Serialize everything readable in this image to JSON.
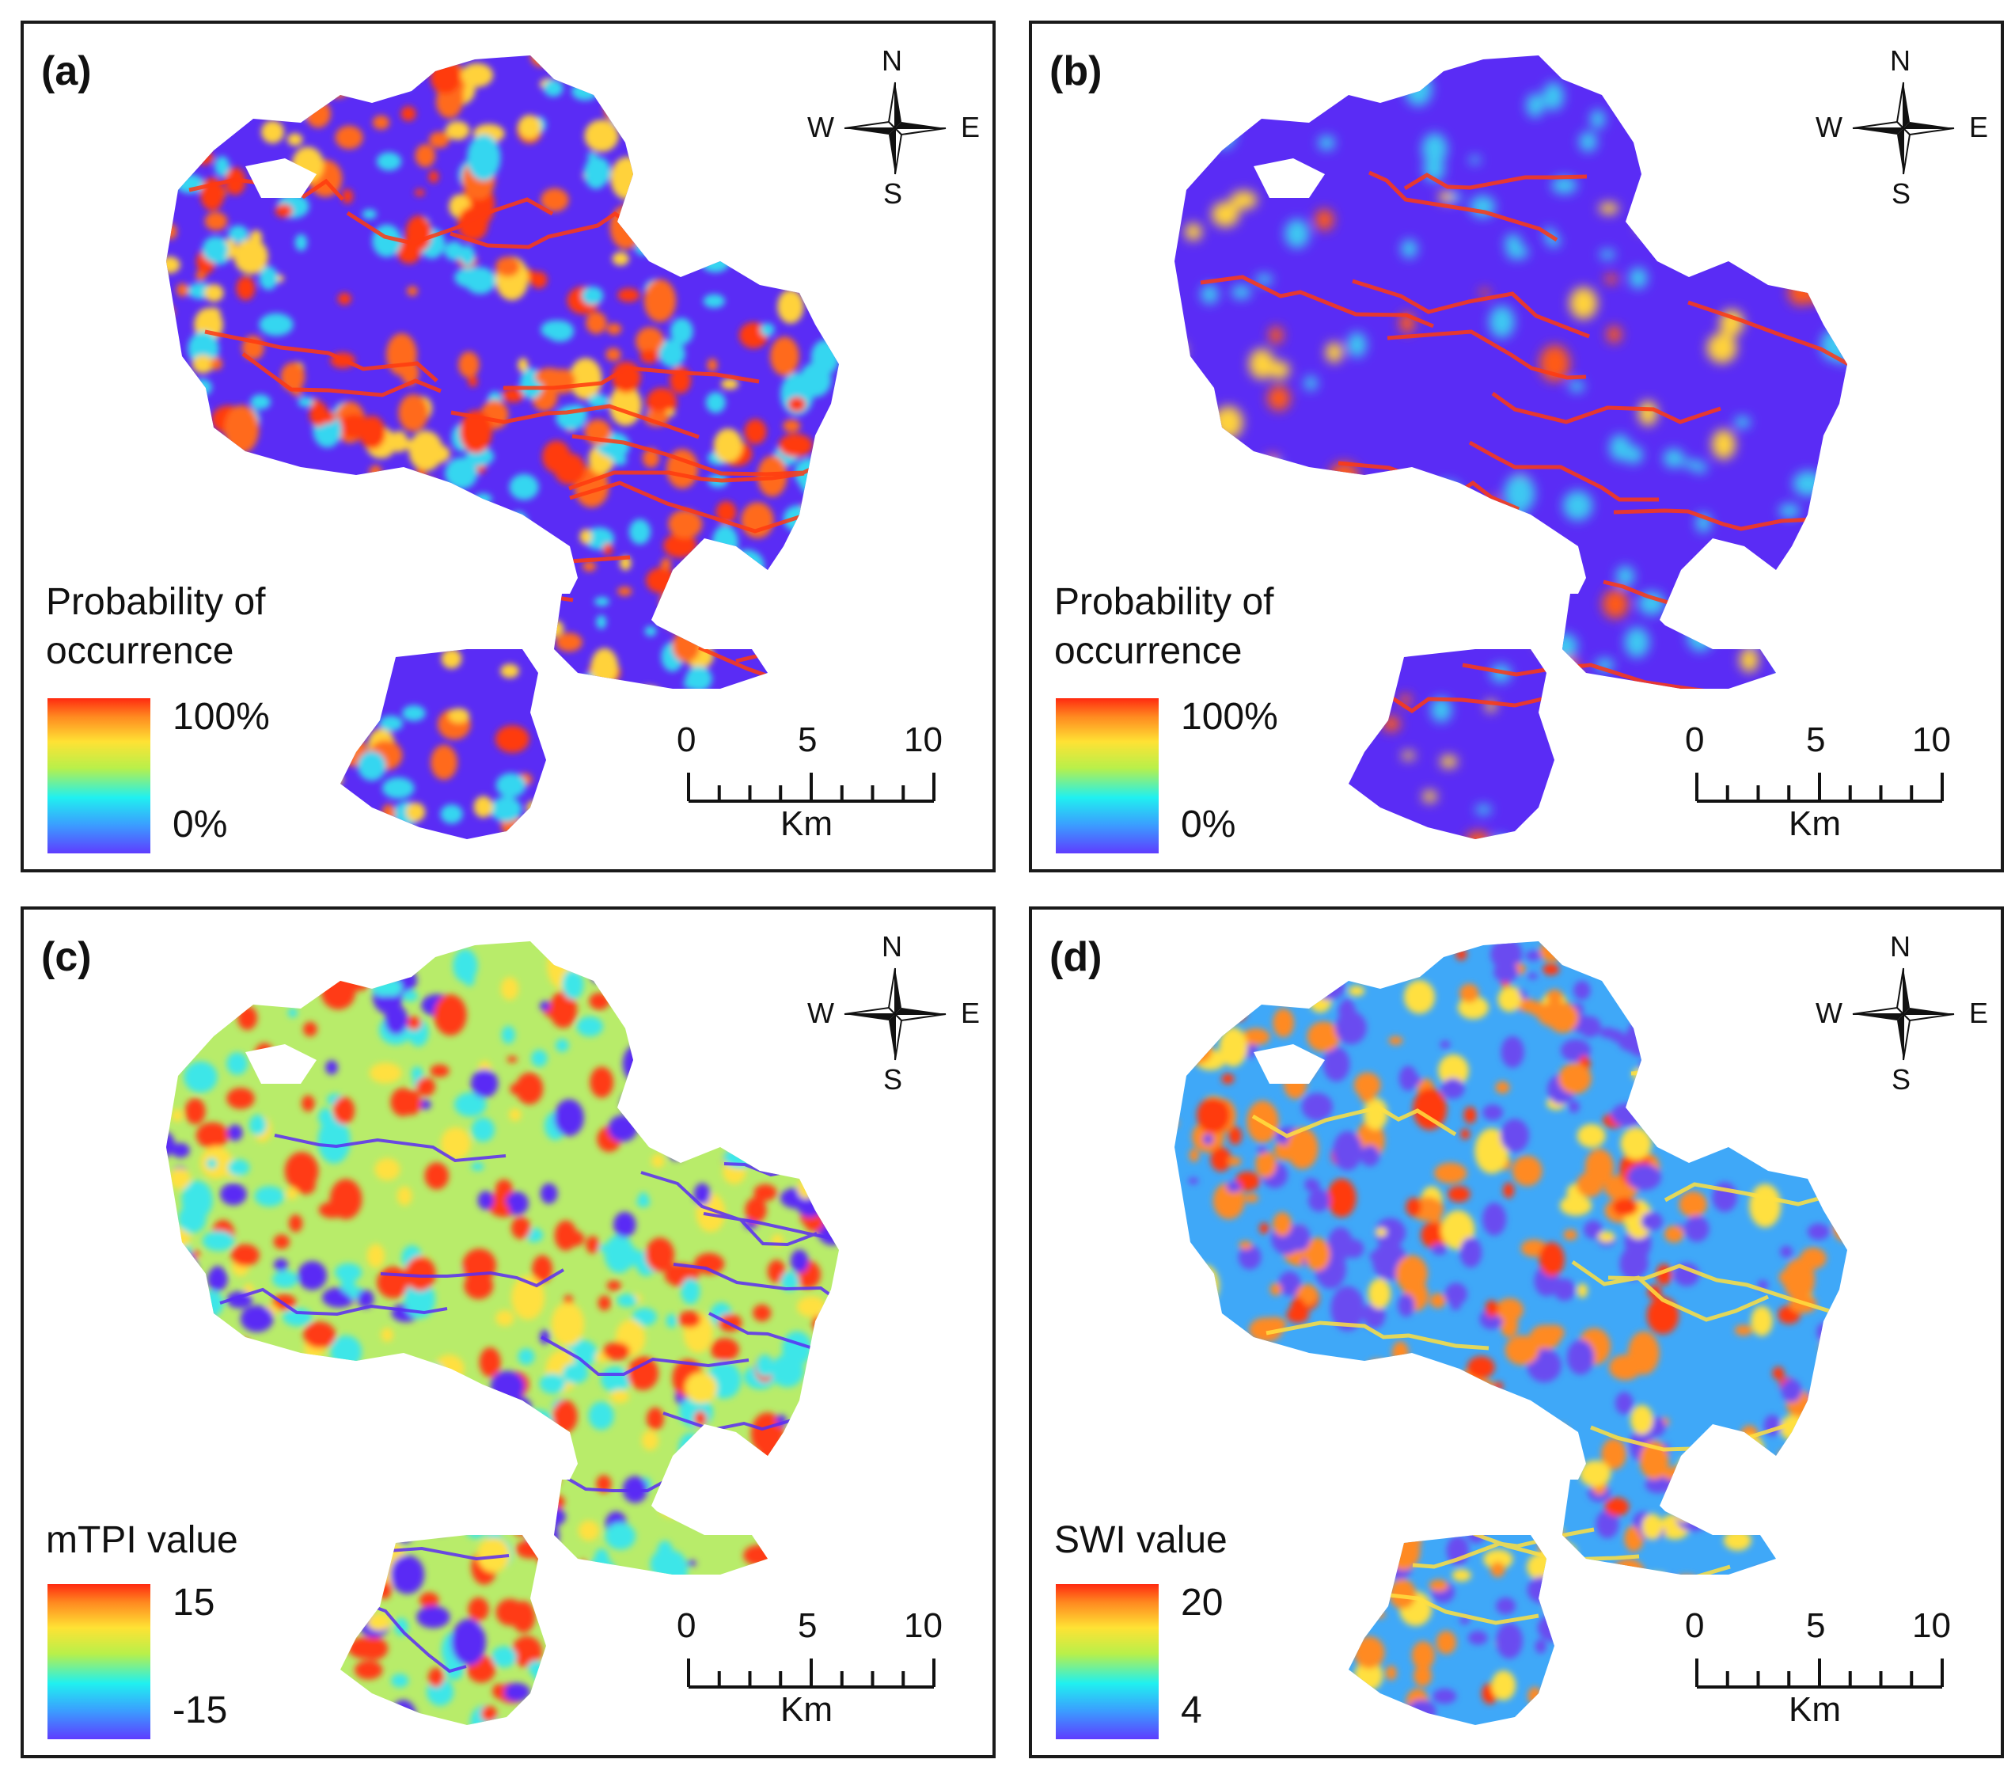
{
  "panels": [
    {
      "id": "a",
      "label": "(a)",
      "legend": {
        "title": "Probability of occurrence",
        "max": "100%",
        "min": "0%"
      },
      "palette": {
        "base": "#5a2cf5",
        "mid": "#36d6f0",
        "hot": "#ff6a1a",
        "hot2": "#ff3a10",
        "warm": "#ffd23a"
      }
    },
    {
      "id": "b",
      "label": "(b)",
      "legend": {
        "title": "Probability of occurrence",
        "max": "100%",
        "min": "0%"
      },
      "palette": {
        "base": "#5a2cf5",
        "mid": "#3cc8f2",
        "hot": "#ff5a18",
        "hot2": "#ff3a10",
        "warm": "#ffd23a"
      }
    },
    {
      "id": "c",
      "label": "(c)",
      "legend": {
        "title": "mTPI value",
        "max": "15",
        "min": "-15"
      },
      "palette": {
        "base": "#b8ec6a",
        "mid": "#3ce6e8",
        "hot": "#ff3a14",
        "hot2": "#5a2cf5",
        "warm": "#ffe040"
      }
    },
    {
      "id": "d",
      "label": "(d)",
      "legend": {
        "title": "SWI value",
        "max": "20",
        "min": "4"
      },
      "palette": {
        "base": "#3fa8f8",
        "mid": "#6b4cf0",
        "hot": "#ff8a20",
        "hot2": "#ff3a10",
        "warm": "#ffe040"
      }
    }
  ],
  "compass": {
    "n": "N",
    "s": "S",
    "w": "W",
    "e": "E"
  },
  "scalebar": {
    "tick0": "0",
    "tick5": "5",
    "tick10": "10",
    "unit": "Km"
  }
}
